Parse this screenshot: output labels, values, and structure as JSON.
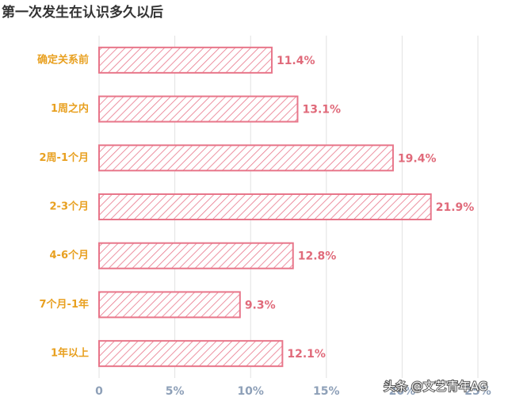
{
  "chart_data": {
    "type": "bar",
    "orientation": "horizontal",
    "title": "第一次发生在认识多久以后",
    "categories": [
      "确定关系前",
      "1周之内",
      "2周-1个月",
      "2-3个月",
      "4-6个月",
      "7个月-1年",
      "1年以上"
    ],
    "values": [
      11.4,
      13.1,
      19.4,
      21.9,
      12.8,
      9.3,
      12.1
    ],
    "value_labels": [
      "11.4%",
      "13.1%",
      "19.4%",
      "21.9%",
      "12.8%",
      "9.3%",
      "12.1%"
    ],
    "color": "#e8768a",
    "xlim": [
      0,
      25
    ],
    "xticks": [
      0,
      {
        "value": 5,
        "label": "5%"
      },
      {
        "value": 10,
        "label": "10%"
      },
      {
        "value": 15,
        "label": "15%"
      },
      {
        "value": 20,
        "label": "20%"
      },
      {
        "value": 25,
        "label": "25%"
      }
    ],
    "grid": true,
    "watermark": "头条 @文艺青年AG"
  }
}
